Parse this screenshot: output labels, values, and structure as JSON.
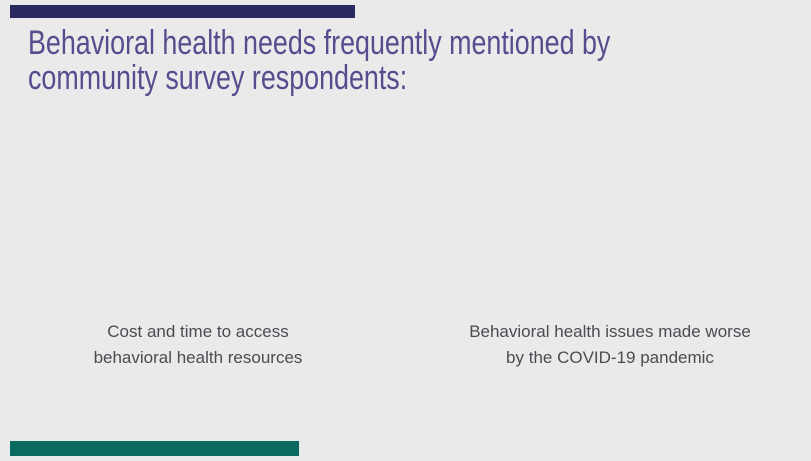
{
  "slide": {
    "title": "Behavioral health needs frequently mentioned by\ncommunity survey respondents:",
    "captions": {
      "left": "Cost and time to access\nbehavioral health resources",
      "right": "Behavioral health issues made worse\nby the COVID-19 pandemic"
    },
    "colors": {
      "background": "#EAEAEA",
      "title_text": "#584C8E",
      "caption_text": "#4B4B52",
      "top_accent_bar": "#2B2A5F",
      "bottom_accent_bar": "#0A6A5F"
    }
  }
}
